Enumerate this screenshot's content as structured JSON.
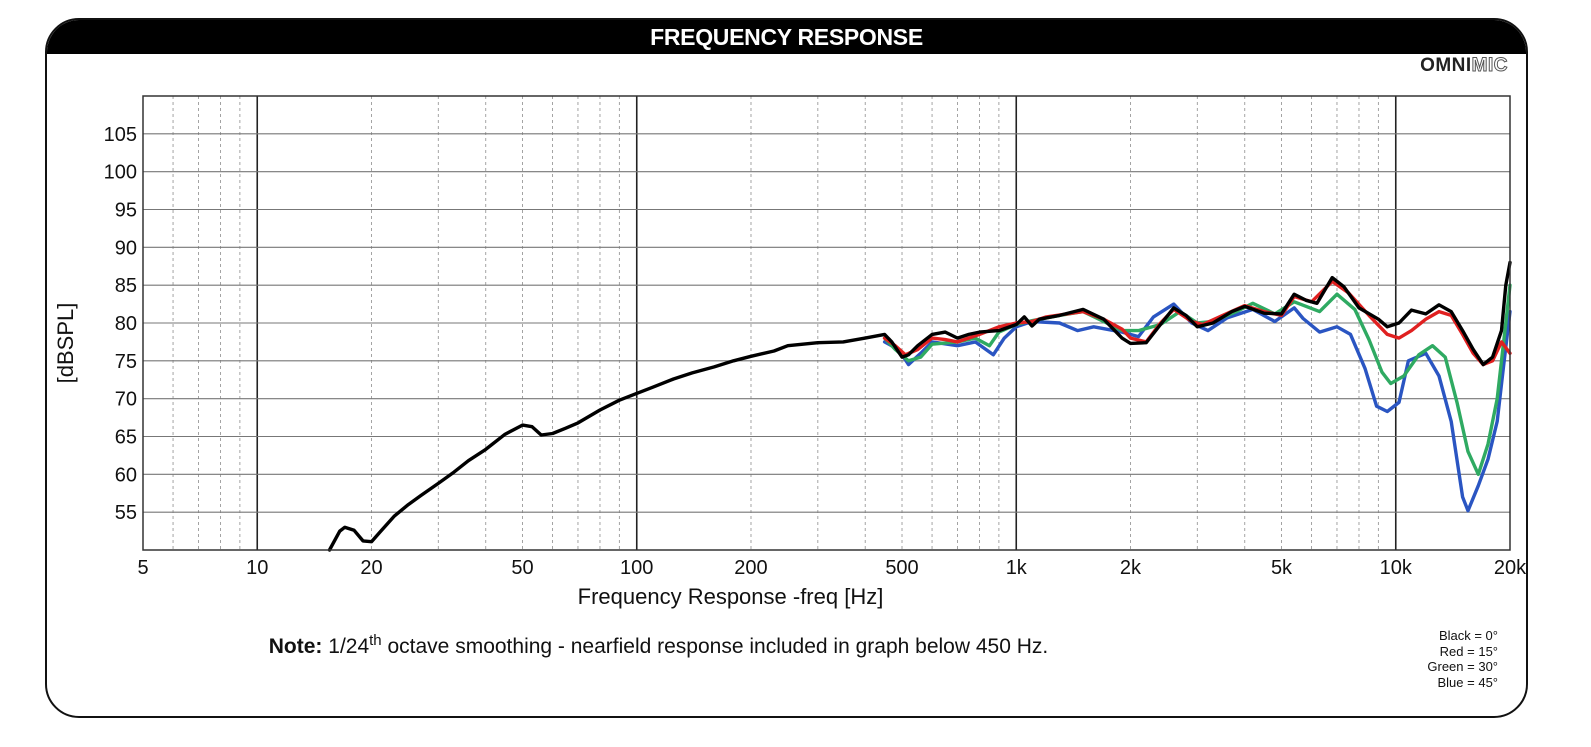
{
  "header": {
    "title": "FREQUENCY RESPONSE"
  },
  "brand": {
    "bold": "OMNI",
    "light": "MIC"
  },
  "note": {
    "label": "Note:",
    "text_pre": "1/24",
    "superscript": "th",
    "text_post": " octave smoothing - nearfield response included in graph below 450 Hz."
  },
  "legend": [
    "Black = 0°",
    "Red = 15°",
    "Green = 30°",
    "Blue = 45°"
  ],
  "chart_data": {
    "type": "line",
    "xlabel": "Frequency Response -freq [Hz]",
    "ylabel": "[dBSPL]",
    "xscale": "log",
    "xlim": [
      5,
      20000
    ],
    "ylim": [
      50,
      110
    ],
    "x_ticks": [
      {
        "value": 5,
        "label": "5"
      },
      {
        "value": 10,
        "label": "10"
      },
      {
        "value": 20,
        "label": "20"
      },
      {
        "value": 50,
        "label": "50"
      },
      {
        "value": 100,
        "label": "100"
      },
      {
        "value": 200,
        "label": "200"
      },
      {
        "value": 500,
        "label": "500"
      },
      {
        "value": 1000,
        "label": "1k"
      },
      {
        "value": 2000,
        "label": "2k"
      },
      {
        "value": 5000,
        "label": "5k"
      },
      {
        "value": 10000,
        "label": "10k"
      },
      {
        "value": 20000,
        "label": "20k"
      }
    ],
    "y_ticks": [
      55,
      60,
      65,
      70,
      75,
      80,
      85,
      90,
      95,
      100,
      105
    ],
    "grid": true,
    "series": [
      {
        "name": "Black = 0°",
        "color": "#000000",
        "points": [
          [
            15.5,
            50
          ],
          [
            16.5,
            52.5
          ],
          [
            17,
            53
          ],
          [
            18,
            52.6
          ],
          [
            19,
            51.2
          ],
          [
            20,
            51.1
          ],
          [
            21,
            52.3
          ],
          [
            23,
            54.5
          ],
          [
            25,
            56
          ],
          [
            27,
            57.2
          ],
          [
            30,
            58.8
          ],
          [
            33,
            60.3
          ],
          [
            36,
            61.8
          ],
          [
            40,
            63.3
          ],
          [
            45,
            65.3
          ],
          [
            50,
            66.5
          ],
          [
            53,
            66.3
          ],
          [
            56,
            65.2
          ],
          [
            60,
            65.4
          ],
          [
            65,
            66.1
          ],
          [
            70,
            66.8
          ],
          [
            80,
            68.5
          ],
          [
            90,
            69.8
          ],
          [
            100,
            70.7
          ],
          [
            110,
            71.5
          ],
          [
            125,
            72.6
          ],
          [
            140,
            73.4
          ],
          [
            160,
            74.2
          ],
          [
            180,
            75
          ],
          [
            200,
            75.6
          ],
          [
            230,
            76.3
          ],
          [
            250,
            77
          ],
          [
            300,
            77.4
          ],
          [
            350,
            77.5
          ],
          [
            400,
            78
          ],
          [
            450,
            78.5
          ],
          [
            470,
            77.5
          ],
          [
            500,
            75.5
          ],
          [
            520,
            75.8
          ],
          [
            550,
            77
          ],
          [
            600,
            78.5
          ],
          [
            650,
            78.8
          ],
          [
            700,
            78
          ],
          [
            750,
            78.5
          ],
          [
            800,
            78.8
          ],
          [
            900,
            79
          ],
          [
            1000,
            79.8
          ],
          [
            1050,
            80.8
          ],
          [
            1100,
            79.6
          ],
          [
            1150,
            80.5
          ],
          [
            1300,
            81
          ],
          [
            1500,
            81.8
          ],
          [
            1700,
            80.5
          ],
          [
            1900,
            78
          ],
          [
            2000,
            77.3
          ],
          [
            2200,
            77.4
          ],
          [
            2400,
            79.8
          ],
          [
            2600,
            82
          ],
          [
            2800,
            81
          ],
          [
            3000,
            79.5
          ],
          [
            3300,
            80
          ],
          [
            3700,
            81.5
          ],
          [
            4000,
            82.2
          ],
          [
            4500,
            81.3
          ],
          [
            5000,
            81.2
          ],
          [
            5400,
            83.8
          ],
          [
            5800,
            83
          ],
          [
            6200,
            82.6
          ],
          [
            6800,
            86
          ],
          [
            7300,
            84.8
          ],
          [
            8000,
            82
          ],
          [
            9000,
            80.5
          ],
          [
            9500,
            79.5
          ],
          [
            10200,
            80
          ],
          [
            11000,
            81.7
          ],
          [
            12000,
            81.2
          ],
          [
            13000,
            82.4
          ],
          [
            14000,
            81.5
          ],
          [
            15000,
            79
          ],
          [
            16000,
            76.5
          ],
          [
            17000,
            74.5
          ],
          [
            18000,
            75.5
          ],
          [
            19000,
            79
          ],
          [
            19500,
            85
          ],
          [
            20000,
            88
          ]
        ]
      },
      {
        "name": "Red = 15°",
        "color": "#e02020",
        "points": [
          [
            450,
            78
          ],
          [
            480,
            77
          ],
          [
            510,
            75.8
          ],
          [
            550,
            76.5
          ],
          [
            600,
            78
          ],
          [
            650,
            77.8
          ],
          [
            700,
            77.5
          ],
          [
            800,
            78.5
          ],
          [
            900,
            79.5
          ],
          [
            1000,
            80
          ],
          [
            1100,
            80.2
          ],
          [
            1200,
            80.8
          ],
          [
            1500,
            81.5
          ],
          [
            1700,
            80.5
          ],
          [
            1900,
            79.2
          ],
          [
            2000,
            78
          ],
          [
            2200,
            77.5
          ],
          [
            2400,
            80
          ],
          [
            2600,
            81.8
          ],
          [
            2900,
            80.2
          ],
          [
            3100,
            79.8
          ],
          [
            3500,
            81
          ],
          [
            4000,
            82.3
          ],
          [
            4500,
            81.5
          ],
          [
            5000,
            81
          ],
          [
            5400,
            83.5
          ],
          [
            6000,
            82.8
          ],
          [
            6800,
            85.5
          ],
          [
            7500,
            84
          ],
          [
            8500,
            81
          ],
          [
            9500,
            78.5
          ],
          [
            10200,
            78
          ],
          [
            11000,
            79
          ],
          [
            12000,
            80.5
          ],
          [
            13000,
            81.5
          ],
          [
            14000,
            81
          ],
          [
            15000,
            78.5
          ],
          [
            16000,
            76
          ],
          [
            17000,
            74.5
          ],
          [
            18000,
            75
          ],
          [
            19000,
            77.5
          ],
          [
            20000,
            76
          ]
        ]
      },
      {
        "name": "Green = 30°",
        "color": "#2faa62",
        "points": [
          [
            450,
            78
          ],
          [
            480,
            76.5
          ],
          [
            520,
            75
          ],
          [
            560,
            75.5
          ],
          [
            600,
            77.2
          ],
          [
            700,
            77.5
          ],
          [
            780,
            78
          ],
          [
            850,
            77
          ],
          [
            900,
            78.8
          ],
          [
            1000,
            79.8
          ],
          [
            1100,
            80.3
          ],
          [
            1300,
            81
          ],
          [
            1500,
            81.5
          ],
          [
            1700,
            80.2
          ],
          [
            1900,
            79
          ],
          [
            2100,
            79
          ],
          [
            2400,
            79.8
          ],
          [
            2700,
            81.5
          ],
          [
            3000,
            80
          ],
          [
            3300,
            80.2
          ],
          [
            3800,
            81.5
          ],
          [
            4200,
            82.6
          ],
          [
            4800,
            81.2
          ],
          [
            5400,
            82.8
          ],
          [
            6300,
            81.5
          ],
          [
            7000,
            83.8
          ],
          [
            7800,
            81.8
          ],
          [
            8500,
            77.8
          ],
          [
            9200,
            73.5
          ],
          [
            9700,
            72
          ],
          [
            10500,
            73
          ],
          [
            11500,
            75.8
          ],
          [
            12500,
            77
          ],
          [
            13500,
            75.5
          ],
          [
            14500,
            69.5
          ],
          [
            15500,
            63
          ],
          [
            16500,
            60
          ],
          [
            17500,
            64
          ],
          [
            18500,
            70
          ],
          [
            19000,
            75
          ],
          [
            19500,
            80
          ],
          [
            20000,
            85
          ]
        ]
      },
      {
        "name": "Blue = 45°",
        "color": "#2a55c2",
        "points": [
          [
            450,
            77.5
          ],
          [
            490,
            76.5
          ],
          [
            520,
            74.5
          ],
          [
            560,
            76
          ],
          [
            600,
            77.5
          ],
          [
            700,
            77
          ],
          [
            780,
            77.5
          ],
          [
            870,
            75.8
          ],
          [
            930,
            78
          ],
          [
            1000,
            79.5
          ],
          [
            1100,
            80.2
          ],
          [
            1300,
            80
          ],
          [
            1450,
            79
          ],
          [
            1600,
            79.5
          ],
          [
            1900,
            78.8
          ],
          [
            2100,
            78.2
          ],
          [
            2300,
            80.8
          ],
          [
            2600,
            82.5
          ],
          [
            2900,
            80
          ],
          [
            3200,
            79
          ],
          [
            3600,
            80.7
          ],
          [
            4200,
            81.8
          ],
          [
            4800,
            80.2
          ],
          [
            5400,
            82
          ],
          [
            5700,
            80.6
          ],
          [
            6300,
            78.8
          ],
          [
            7000,
            79.5
          ],
          [
            7600,
            78.5
          ],
          [
            8300,
            74
          ],
          [
            8900,
            69
          ],
          [
            9500,
            68.3
          ],
          [
            10200,
            69.5
          ],
          [
            10800,
            75
          ],
          [
            12000,
            76
          ],
          [
            13000,
            73
          ],
          [
            14000,
            67
          ],
          [
            15000,
            57
          ],
          [
            15500,
            55.2
          ],
          [
            16500,
            58.5
          ],
          [
            17500,
            62
          ],
          [
            18500,
            67
          ],
          [
            19200,
            74
          ],
          [
            20000,
            81.5
          ]
        ]
      }
    ]
  }
}
